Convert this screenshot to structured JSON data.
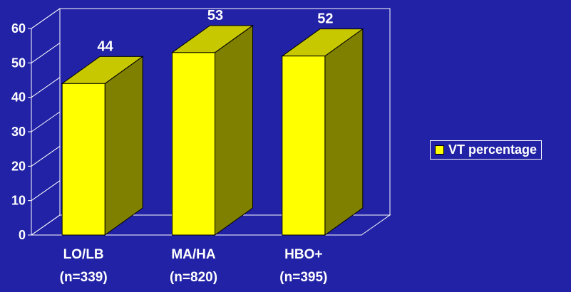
{
  "chart_data": {
    "type": "bar",
    "categories": [
      [
        "LO/LB",
        "(n=339)"
      ],
      [
        "MA/HA",
        "(n=820)"
      ],
      [
        "HBO+",
        "(n=395)"
      ]
    ],
    "series": [
      {
        "name": "VT percentage",
        "values": [
          44,
          53,
          52
        ],
        "labels": [
          "44",
          "53",
          "52"
        ]
      }
    ],
    "yticks": [
      "0",
      "10",
      "20",
      "30",
      "40",
      "50",
      "60"
    ],
    "ylim": [
      0,
      60
    ],
    "grid": false,
    "legend": "right",
    "colors": {
      "background": "#2222a6",
      "bar_front": "#ffff00",
      "bar_top": "#c8c800",
      "bar_side": "#808000",
      "axis": "#ffffff"
    }
  }
}
